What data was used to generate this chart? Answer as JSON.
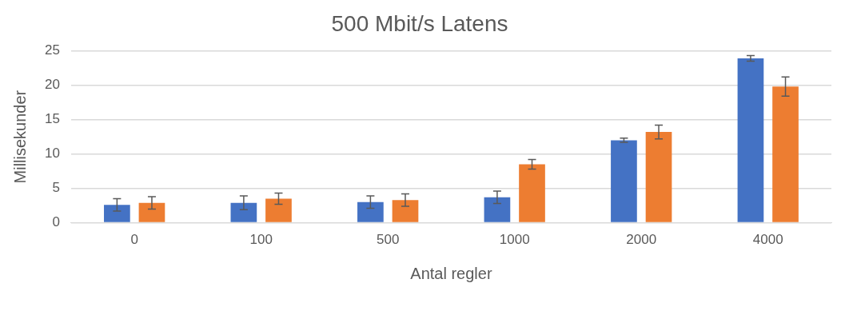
{
  "chart_data": {
    "type": "bar",
    "title": "500 Mbit/s Latens",
    "xlabel": "Antal regler",
    "ylabel": "Millisekunder",
    "categories": [
      "0",
      "100",
      "500",
      "1000",
      "2000",
      "4000"
    ],
    "series": [
      {
        "color": "#4472c4",
        "values": [
          2.6,
          2.9,
          3.0,
          3.7,
          12.0,
          23.9
        ],
        "errors": [
          0.9,
          1.0,
          0.9,
          0.9,
          0.3,
          0.4
        ]
      },
      {
        "color": "#ed7d31",
        "values": [
          2.9,
          3.5,
          3.3,
          8.5,
          13.2,
          19.8
        ],
        "errors": [
          0.9,
          0.8,
          0.9,
          0.7,
          1.0,
          1.4
        ]
      }
    ],
    "ylim": [
      0,
      25
    ],
    "yticks": [
      0,
      5,
      10,
      15,
      20,
      25
    ],
    "grid": "y"
  }
}
